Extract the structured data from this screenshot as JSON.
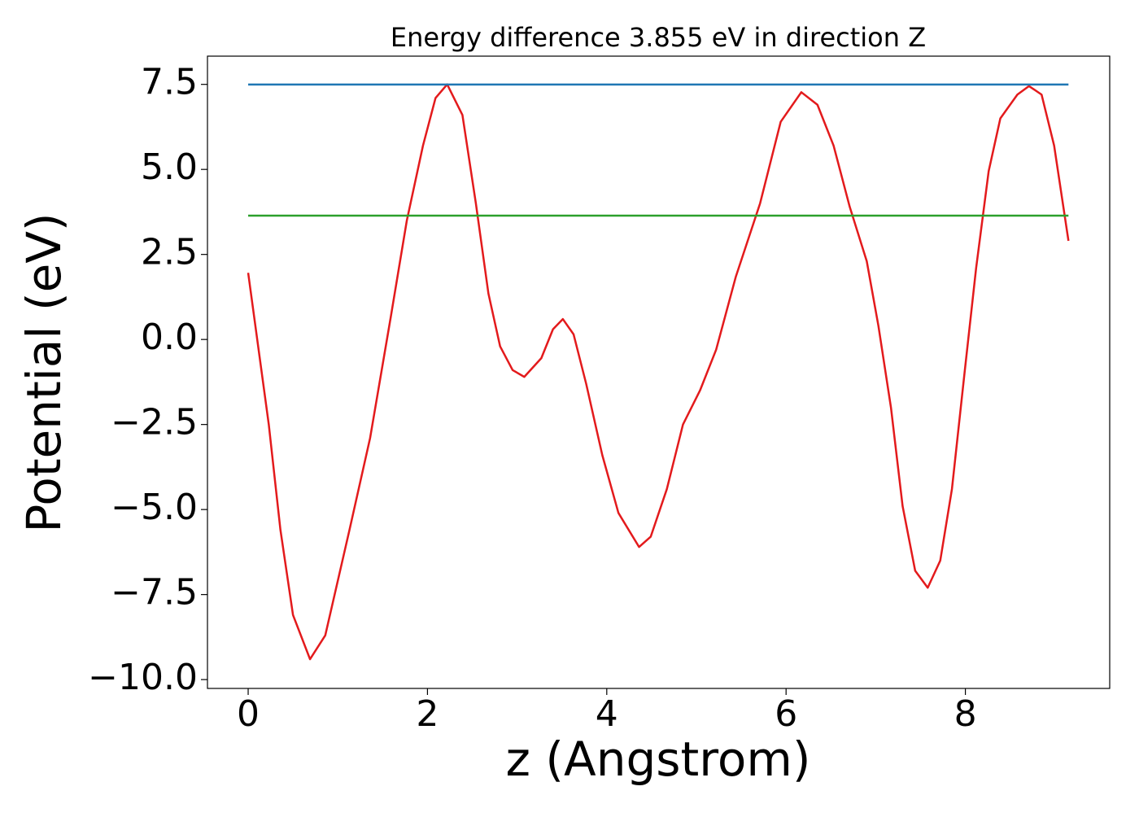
{
  "chart_data": {
    "type": "line",
    "title": "Energy difference 3.855 eV in direction Z",
    "xlabel": "z (Angstrom)",
    "ylabel": "Potential (eV)",
    "xlim": [
      -0.454,
      9.61
    ],
    "ylim": [
      -10.26,
      8.33
    ],
    "xticks": [
      0,
      2,
      4,
      6,
      8
    ],
    "yticks": [
      {
        "value": -10,
        "label": "−10.0"
      },
      {
        "value": -7.5,
        "label": "−7.5"
      },
      {
        "value": -5,
        "label": "−5.0"
      },
      {
        "value": -2.5,
        "label": "−2.5"
      },
      {
        "value": 0,
        "label": "0.0"
      },
      2.5,
      {
        "value": 5,
        "label": "5.0"
      },
      7.5
    ],
    "series": [
      {
        "color": "#e31a1c",
        "x": [
          0,
          0.23,
          0.36,
          0.5,
          0.69,
          0.86,
          1.13,
          1.36,
          1.59,
          1.77,
          1.95,
          2.09,
          2.22,
          2.39,
          2.54,
          2.68,
          2.81,
          2.95,
          3.08,
          3.27,
          3.4,
          3.51,
          3.63,
          3.77,
          3.95,
          4.13,
          4.36,
          4.49,
          4.67,
          4.85,
          5.04,
          5.22,
          5.44,
          5.71,
          5.94,
          6.17,
          6.35,
          6.53,
          6.71,
          6.9,
          7.03,
          7.17,
          7.3,
          7.44,
          7.58,
          7.72,
          7.85,
          7.99,
          8.12,
          8.26,
          8.39,
          8.58,
          8.71,
          8.85,
          8.99,
          9.15
        ],
        "values": [
          1.96,
          -2.5,
          -5.6,
          -8.1,
          -9.4,
          -8.7,
          -5.6,
          -2.9,
          0.65,
          3.5,
          5.7,
          7.1,
          7.5,
          6.6,
          4.0,
          1.35,
          -0.2,
          -0.9,
          -1.1,
          -0.55,
          0.3,
          0.6,
          0.15,
          -1.3,
          -3.4,
          -5.1,
          -6.1,
          -5.8,
          -4.4,
          -2.5,
          -1.5,
          -0.3,
          1.85,
          4.0,
          6.4,
          7.27,
          6.9,
          5.7,
          3.9,
          2.3,
          0.4,
          -2.0,
          -4.9,
          -6.8,
          -7.3,
          -6.5,
          -4.4,
          -1.0,
          2.1,
          4.95,
          6.5,
          7.2,
          7.45,
          7.2,
          5.7,
          2.9
        ]
      },
      {
        "color": "#1f77b4",
        "x": [
          0,
          9.15
        ],
        "values": [
          7.495,
          7.495
        ]
      },
      {
        "color": "#2ca02c",
        "x": [
          0,
          9.15
        ],
        "values": [
          3.64,
          3.64
        ]
      }
    ]
  }
}
